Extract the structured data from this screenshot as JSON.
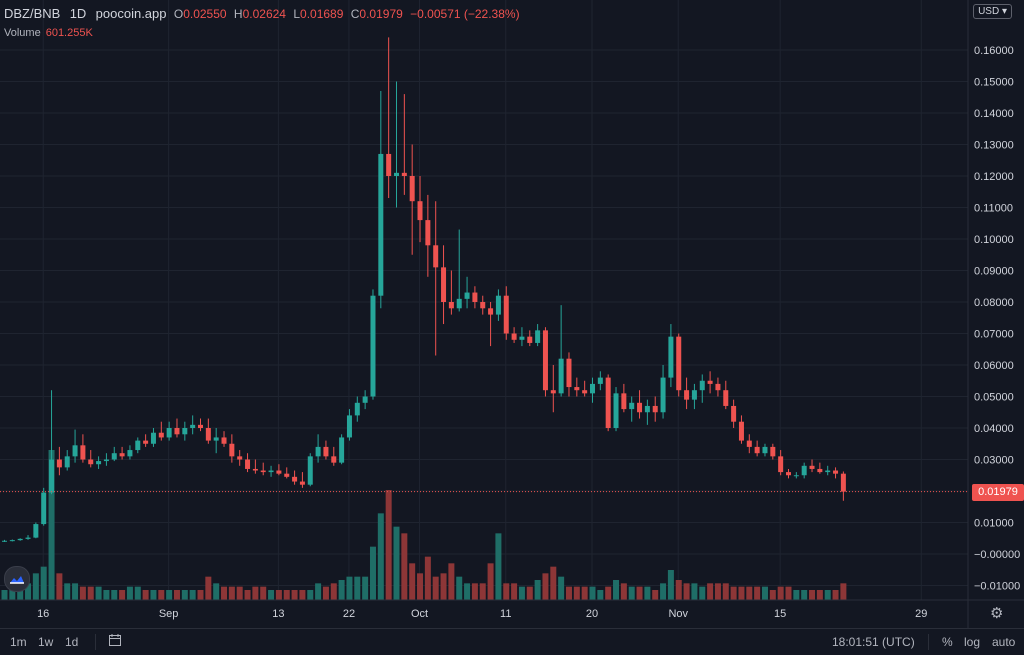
{
  "legend": {
    "symbol": "DBZ/BNB",
    "interval": "1D",
    "source": "poocoin.app",
    "o_label": "O",
    "o_value": "0.02550",
    "h_label": "H",
    "h_value": "0.02624",
    "l_label": "L",
    "l_value": "0.01689",
    "c_label": "C",
    "c_value": "0.01979",
    "change": "−0.00571 (−22.38%)"
  },
  "volume": {
    "label": "Volume",
    "value": "601.255K"
  },
  "currency_button": "USD",
  "last_price_label": "0.01979",
  "price_axis": {
    "ticks": [
      "0.16000",
      "0.15000",
      "0.14000",
      "0.13000",
      "0.12000",
      "0.11000",
      "0.10000",
      "0.09000",
      "0.08000",
      "0.07000",
      "0.06000",
      "0.05000",
      "0.04000",
      "0.03000",
      "0.02000",
      "0.01000",
      "−0.00000",
      "−0.01000"
    ]
  },
  "time_axis": {
    "ticks": [
      "16",
      "Sep",
      "13",
      "22",
      "Oct",
      "11",
      "20",
      "Nov",
      "15",
      "29"
    ]
  },
  "bottom_bar": {
    "intervals": [
      "1m",
      "1w",
      "1d"
    ],
    "clock": "18:01:51 (UTC)",
    "percent": "%",
    "log": "log",
    "auto": "auto"
  },
  "colors": {
    "up": "#26a69a",
    "down": "#ef5350",
    "background": "#131722",
    "grid": "#1f2430"
  },
  "icons": {
    "logo": "tradingview-cloud-icon",
    "settings": "gear-icon",
    "range": "date-range-icon"
  },
  "chart_data": {
    "type": "candlestick",
    "y_scale": "linear",
    "ylim": [
      -0.012,
      0.17
    ],
    "candles": [
      [
        0.004,
        0.0045,
        0.0038,
        0.0042
      ],
      [
        0.0042,
        0.0046,
        0.004,
        0.0044
      ],
      [
        0.0044,
        0.005,
        0.0042,
        0.0048
      ],
      [
        0.0048,
        0.006,
        0.0045,
        0.0052
      ],
      [
        0.0052,
        0.01,
        0.005,
        0.0095
      ],
      [
        0.0095,
        0.021,
        0.009,
        0.0195
      ],
      [
        0.0195,
        0.052,
        0.019,
        0.03
      ],
      [
        0.03,
        0.034,
        0.025,
        0.0275
      ],
      [
        0.0275,
        0.033,
        0.0265,
        0.031
      ],
      [
        0.031,
        0.0395,
        0.029,
        0.0345
      ],
      [
        0.0345,
        0.038,
        0.029,
        0.03
      ],
      [
        0.03,
        0.033,
        0.0275,
        0.0285
      ],
      [
        0.0285,
        0.031,
        0.027,
        0.0295
      ],
      [
        0.0295,
        0.032,
        0.028,
        0.03
      ],
      [
        0.03,
        0.034,
        0.0295,
        0.032
      ],
      [
        0.032,
        0.034,
        0.03,
        0.031
      ],
      [
        0.031,
        0.0345,
        0.03,
        0.033
      ],
      [
        0.033,
        0.037,
        0.032,
        0.036
      ],
      [
        0.036,
        0.038,
        0.034,
        0.035
      ],
      [
        0.035,
        0.04,
        0.034,
        0.0385
      ],
      [
        0.0385,
        0.042,
        0.036,
        0.037
      ],
      [
        0.037,
        0.042,
        0.036,
        0.04
      ],
      [
        0.04,
        0.043,
        0.037,
        0.038
      ],
      [
        0.038,
        0.042,
        0.036,
        0.04
      ],
      [
        0.04,
        0.044,
        0.038,
        0.041
      ],
      [
        0.041,
        0.043,
        0.039,
        0.04
      ],
      [
        0.04,
        0.043,
        0.035,
        0.036
      ],
      [
        0.036,
        0.04,
        0.032,
        0.037
      ],
      [
        0.037,
        0.039,
        0.034,
        0.035
      ],
      [
        0.035,
        0.038,
        0.029,
        0.031
      ],
      [
        0.031,
        0.033,
        0.028,
        0.03
      ],
      [
        0.03,
        0.032,
        0.026,
        0.027
      ],
      [
        0.027,
        0.03,
        0.0255,
        0.0265
      ],
      [
        0.0265,
        0.029,
        0.025,
        0.026
      ],
      [
        0.026,
        0.028,
        0.0245,
        0.0265
      ],
      [
        0.0265,
        0.0285,
        0.025,
        0.0255
      ],
      [
        0.0255,
        0.0275,
        0.024,
        0.0245
      ],
      [
        0.0245,
        0.0265,
        0.022,
        0.023
      ],
      [
        0.023,
        0.026,
        0.021,
        0.022
      ],
      [
        0.022,
        0.032,
        0.0215,
        0.031
      ],
      [
        0.031,
        0.038,
        0.029,
        0.034
      ],
      [
        0.034,
        0.036,
        0.03,
        0.031
      ],
      [
        0.031,
        0.034,
        0.028,
        0.029
      ],
      [
        0.029,
        0.038,
        0.0285,
        0.037
      ],
      [
        0.037,
        0.046,
        0.036,
        0.044
      ],
      [
        0.044,
        0.05,
        0.042,
        0.048
      ],
      [
        0.048,
        0.052,
        0.046,
        0.05
      ],
      [
        0.05,
        0.084,
        0.049,
        0.082
      ],
      [
        0.082,
        0.147,
        0.078,
        0.127
      ],
      [
        0.127,
        0.164,
        0.113,
        0.12
      ],
      [
        0.12,
        0.15,
        0.11,
        0.121
      ],
      [
        0.121,
        0.146,
        0.114,
        0.12
      ],
      [
        0.12,
        0.13,
        0.095,
        0.112
      ],
      [
        0.112,
        0.12,
        0.099,
        0.106
      ],
      [
        0.106,
        0.114,
        0.088,
        0.098
      ],
      [
        0.098,
        0.112,
        0.063,
        0.091
      ],
      [
        0.091,
        0.098,
        0.073,
        0.08
      ],
      [
        0.08,
        0.09,
        0.076,
        0.078
      ],
      [
        0.078,
        0.103,
        0.077,
        0.081
      ],
      [
        0.081,
        0.088,
        0.078,
        0.083
      ],
      [
        0.083,
        0.085,
        0.078,
        0.08
      ],
      [
        0.08,
        0.082,
        0.076,
        0.078
      ],
      [
        0.078,
        0.08,
        0.066,
        0.076
      ],
      [
        0.076,
        0.084,
        0.074,
        0.082
      ],
      [
        0.082,
        0.085,
        0.068,
        0.07
      ],
      [
        0.07,
        0.072,
        0.067,
        0.068
      ],
      [
        0.068,
        0.072,
        0.066,
        0.069
      ],
      [
        0.069,
        0.071,
        0.066,
        0.067
      ],
      [
        0.067,
        0.073,
        0.066,
        0.071
      ],
      [
        0.071,
        0.072,
        0.05,
        0.052
      ],
      [
        0.052,
        0.06,
        0.045,
        0.051
      ],
      [
        0.051,
        0.079,
        0.05,
        0.062
      ],
      [
        0.062,
        0.064,
        0.05,
        0.053
      ],
      [
        0.053,
        0.056,
        0.05,
        0.052
      ],
      [
        0.052,
        0.055,
        0.05,
        0.051
      ],
      [
        0.051,
        0.056,
        0.048,
        0.054
      ],
      [
        0.054,
        0.058,
        0.052,
        0.056
      ],
      [
        0.056,
        0.057,
        0.039,
        0.04
      ],
      [
        0.04,
        0.053,
        0.039,
        0.051
      ],
      [
        0.051,
        0.054,
        0.045,
        0.046
      ],
      [
        0.046,
        0.05,
        0.042,
        0.048
      ],
      [
        0.048,
        0.052,
        0.043,
        0.045
      ],
      [
        0.045,
        0.049,
        0.041,
        0.047
      ],
      [
        0.047,
        0.05,
        0.042,
        0.045
      ],
      [
        0.045,
        0.06,
        0.043,
        0.056
      ],
      [
        0.056,
        0.073,
        0.053,
        0.069
      ],
      [
        0.069,
        0.07,
        0.05,
        0.052
      ],
      [
        0.052,
        0.056,
        0.046,
        0.049
      ],
      [
        0.049,
        0.054,
        0.046,
        0.052
      ],
      [
        0.052,
        0.057,
        0.048,
        0.055
      ],
      [
        0.055,
        0.058,
        0.051,
        0.054
      ],
      [
        0.054,
        0.056,
        0.05,
        0.052
      ],
      [
        0.052,
        0.055,
        0.046,
        0.047
      ],
      [
        0.047,
        0.049,
        0.04,
        0.042
      ],
      [
        0.042,
        0.044,
        0.035,
        0.036
      ],
      [
        0.036,
        0.038,
        0.032,
        0.034
      ],
      [
        0.034,
        0.036,
        0.031,
        0.032
      ],
      [
        0.032,
        0.035,
        0.031,
        0.034
      ],
      [
        0.034,
        0.035,
        0.03,
        0.031
      ],
      [
        0.031,
        0.033,
        0.025,
        0.026
      ],
      [
        0.026,
        0.027,
        0.024,
        0.025
      ],
      [
        0.025,
        0.026,
        0.024,
        0.025
      ],
      [
        0.025,
        0.029,
        0.024,
        0.028
      ],
      [
        0.028,
        0.03,
        0.026,
        0.027
      ],
      [
        0.027,
        0.029,
        0.0255,
        0.026
      ],
      [
        0.026,
        0.028,
        0.025,
        0.0265
      ],
      [
        0.0265,
        0.0275,
        0.024,
        0.0255
      ],
      [
        0.0255,
        0.0262,
        0.0169,
        0.0198
      ]
    ],
    "volume": [
      3,
      3,
      4,
      5,
      8,
      10,
      45,
      8,
      5,
      5,
      4,
      4,
      4,
      3,
      3,
      3,
      4,
      4,
      3,
      3,
      3,
      3,
      3,
      3,
      3,
      3,
      7,
      5,
      4,
      4,
      4,
      3,
      4,
      4,
      3,
      3,
      3,
      3,
      3,
      3,
      5,
      4,
      5,
      6,
      7,
      7,
      7,
      16,
      26,
      33,
      22,
      20,
      11,
      8,
      13,
      7,
      8,
      11,
      7,
      5,
      5,
      5,
      11,
      20,
      5,
      5,
      4,
      4,
      6,
      8,
      10,
      7,
      4,
      4,
      4,
      4,
      3,
      4,
      6,
      5,
      4,
      4,
      4,
      3,
      5,
      9,
      6,
      5,
      5,
      4,
      5,
      5,
      5,
      4,
      4,
      4,
      4,
      4,
      3,
      4,
      4,
      3,
      3,
      3,
      3,
      3,
      3,
      5
    ]
  }
}
